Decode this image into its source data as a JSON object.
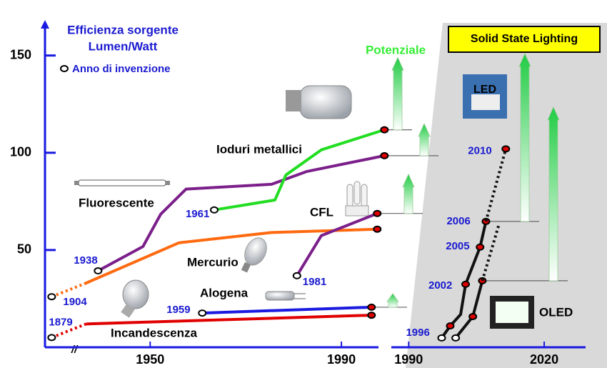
{
  "y_title": [
    "Efficienza sorgente",
    "Lumen/Watt"
  ],
  "marker_legend": "Anno di invenzione",
  "potential_label": "Potenziale",
  "ssl_title": "Solid State Lighting",
  "break_mark": "//",
  "icons": [
    "LED",
    "OLED"
  ],
  "chart_data": {
    "type": "line",
    "ylim": [
      0,
      162
    ],
    "yticks": [
      50,
      100,
      150
    ],
    "panels": [
      {
        "xlim": [
          1928,
          2000
        ],
        "xticks": [
          1950,
          1990
        ]
      },
      {
        "xlim": [
          1986,
          2029
        ],
        "xticks": [
          1990,
          2020
        ]
      }
    ],
    "series": [
      {
        "panel": 0,
        "color": "#e00000",
        "dotted": true,
        "x": [
          1929.4,
          1936.6
        ],
        "values": [
          5,
          12
        ],
        "markers": [
          "#ffffff",
          null
        ],
        "point_labels": [
          "1879",
          null
        ]
      },
      {
        "name": "Incandescenza",
        "panel": 0,
        "color": "#e00000",
        "dotted": false,
        "x": [
          1936.6,
          1996.3
        ],
        "values": [
          12,
          16.5
        ],
        "markers": [
          null,
          "#e00000"
        ]
      },
      {
        "name": "Alogena",
        "panel": 0,
        "color": "#1a1ae0",
        "dotted": false,
        "x": [
          1960.9,
          1996.3
        ],
        "values": [
          17.6,
          20.6
        ],
        "markers": [
          "#ffffff",
          "#e00000"
        ],
        "point_labels": [
          "1959",
          null
        ]
      },
      {
        "panel": 0,
        "color": "#ff6a10",
        "dotted": true,
        "x": [
          1929.4,
          1936.3
        ],
        "values": [
          26,
          32.7
        ],
        "markers": [
          "#ffffff",
          null
        ],
        "point_labels": [
          "1904",
          null
        ]
      },
      {
        "name": "Mercurio",
        "panel": 0,
        "color": "#ff6a10",
        "dotted": false,
        "x": [
          1936.3,
          1956,
          1975.4,
          1997.5
        ],
        "values": [
          32.7,
          53.7,
          59,
          60.7
        ],
        "markers": [
          null,
          null,
          null,
          "#e00000"
        ]
      },
      {
        "name": "Fluorescente",
        "panel": 0,
        "color": "#7b1f8a",
        "dotted": false,
        "x": [
          1939.1,
          1948.5,
          1952.2,
          1957.5,
          1975.4,
          1982.8,
          1999
        ],
        "values": [
          39.3,
          51.8,
          68.4,
          81.3,
          83.8,
          90.4,
          98.5
        ],
        "markers": [
          "#ffffff",
          null,
          null,
          null,
          null,
          null,
          "#e00000"
        ],
        "point_labels": [
          "1938",
          null,
          null,
          null,
          null,
          null,
          null
        ]
      },
      {
        "name": "Ioduri metallici",
        "panel": 0,
        "color": "#22dd22",
        "dotted": false,
        "x": [
          1963.4,
          1976.1,
          1978.4,
          1985.8,
          1999
        ],
        "values": [
          70.6,
          75.7,
          88.6,
          101.5,
          111.8
        ],
        "markers": [
          "#ffffff",
          null,
          null,
          null,
          "#e00000"
        ],
        "point_labels": [
          "1961",
          null,
          null,
          null,
          null
        ]
      },
      {
        "name": "CFL",
        "panel": 0,
        "color": "#7b1f8a",
        "dotted": false,
        "x": [
          1980.7,
          1985.8,
          1997.5
        ],
        "values": [
          36.8,
          57.4,
          68.8
        ],
        "markers": [
          "#ffffff",
          null,
          "#e00000"
        ],
        "point_labels": [
          "1981",
          null,
          null
        ]
      },
      {
        "panel": 1,
        "color": "#111111",
        "dotted": false,
        "x": [
          1997.3,
          1999.2,
          2001.5,
          2002.6,
          2005.8,
          2007.1
        ],
        "values": [
          4.8,
          11,
          16.9,
          32.4,
          51.5,
          64.7
        ],
        "markers": [
          "#ffffff",
          "#e00000",
          null,
          "#e00000",
          "#e00000",
          "#e00000"
        ],
        "point_labels": [
          "1996",
          null,
          null,
          "2002",
          "2005",
          "2006"
        ]
      },
      {
        "panel": 1,
        "color": "#111111",
        "dotted": true,
        "x": [
          2007.1,
          2011.5
        ],
        "values": [
          64.7,
          102
        ],
        "markers": [
          null,
          "#e00000"
        ],
        "point_labels": [
          null,
          "2010"
        ]
      },
      {
        "panel": 1,
        "color": "#111111",
        "dotted": false,
        "x": [
          2000.4,
          2004.2,
          2006.3
        ],
        "values": [
          4.8,
          15.8,
          34.2
        ],
        "markers": [
          "#ffffff",
          "#e00000",
          "#e00000"
        ]
      },
      {
        "panel": 1,
        "color": "#111111",
        "dotted": true,
        "x": [
          2006.3,
          2009.9
        ],
        "values": [
          34.2,
          62.5
        ],
        "markers": [
          null,
          null
        ]
      }
    ],
    "potential": [
      {
        "base": 111.8,
        "tip": 149
      },
      {
        "base": 98.5,
        "tip": 115
      },
      {
        "base": 68.8,
        "tip": 89
      },
      {
        "base": 20.6,
        "tip": 27.6
      },
      {
        "base": 64.7,
        "tip": 151
      },
      {
        "base": 34.2,
        "tip": 123.5
      }
    ]
  }
}
